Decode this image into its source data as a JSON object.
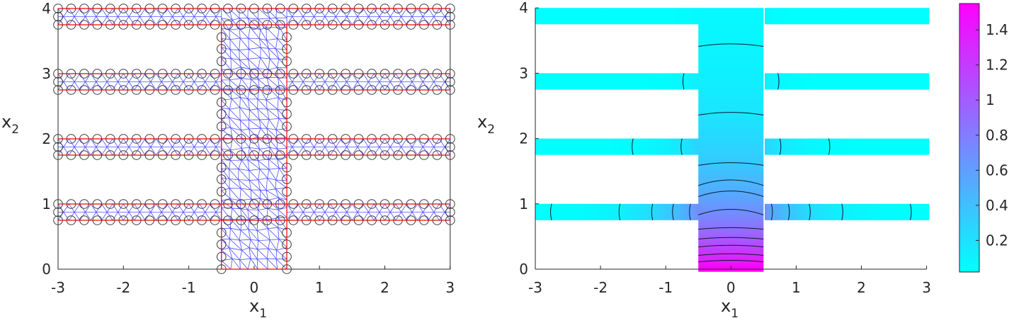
{
  "chart_data": [
    {
      "type": "mesh",
      "panel": "left",
      "title": "",
      "xlabel": "x",
      "xlabel_sub": "1",
      "ylabel": "x",
      "ylabel_sub": "2",
      "xlim": [
        -3,
        3
      ],
      "ylim": [
        0,
        4
      ],
      "xticks": [
        -3,
        -2,
        -1,
        0,
        1,
        2,
        3
      ],
      "xtick_labels": [
        "-3",
        "-2",
        "-1",
        "0",
        "1",
        "2",
        "3"
      ],
      "yticks": [
        0,
        1,
        2,
        3,
        4
      ],
      "ytick_labels": [
        "0",
        "1",
        "2",
        "3",
        "4"
      ],
      "domain": {
        "channels": [
          {
            "y0": 3.75,
            "y1": 4.0,
            "x0": -3,
            "x1": 3
          },
          {
            "y0": 2.75,
            "y1": 3.0,
            "x0": -3,
            "x1": 3
          },
          {
            "y0": 1.75,
            "y1": 2.0,
            "x0": -3,
            "x1": 3
          },
          {
            "y0": 0.75,
            "y1": 1.0,
            "x0": -3,
            "x1": 3
          }
        ],
        "column": {
          "x0": -0.5,
          "x1": 0.5,
          "y0": 0,
          "y1": 4
        }
      },
      "boundary_color": "#ff0000",
      "mesh_color": "#0000ff",
      "node_marker": "circle",
      "node_marker_color": "#333333"
    },
    {
      "type": "contour",
      "panel": "right",
      "title": "",
      "xlabel": "x",
      "xlabel_sub": "1",
      "ylabel": "x",
      "ylabel_sub": "2",
      "xlim": [
        -3,
        3
      ],
      "ylim": [
        0,
        4
      ],
      "xticks": [
        -3,
        -2,
        -1,
        0,
        1,
        2,
        3
      ],
      "xtick_labels": [
        "-3",
        "-2",
        "-1",
        "0",
        "1",
        "2",
        "3"
      ],
      "yticks": [
        0,
        1,
        2,
        3,
        4
      ],
      "ytick_labels": [
        "0",
        "1",
        "2",
        "3",
        "4"
      ],
      "colormap": "cool",
      "colormap_colors": [
        "#00ffff",
        "#ff00ff"
      ],
      "clim": [
        0.02,
        1.55
      ],
      "colorbar_ticks": [
        0.2,
        0.4,
        0.6,
        0.8,
        1.0,
        1.2,
        1.4
      ],
      "colorbar_tick_labels": [
        "0.2",
        "0.4",
        "0.6",
        "0.8",
        "1",
        "1.2",
        "1.4"
      ],
      "field_max_location": [
        0,
        0
      ],
      "field_max_value": 1.55,
      "column_contour_levels_y": [
        0.1,
        0.2,
        0.33,
        0.45,
        0.6,
        0.82,
        1.1,
        1.27,
        1.58,
        2.35,
        3.4
      ],
      "channel_contours_x": {
        "y1": [
          -2.75,
          -1.7,
          -1.2,
          -0.88,
          -0.62,
          0.62,
          0.88,
          1.2,
          1.7,
          2.75
        ],
        "y2": [
          -1.5,
          -0.75,
          0.75,
          1.5
        ],
        "y3": [
          -0.72,
          0.72
        ],
        "y4": []
      },
      "contour_line_color": "#000000"
    }
  ]
}
